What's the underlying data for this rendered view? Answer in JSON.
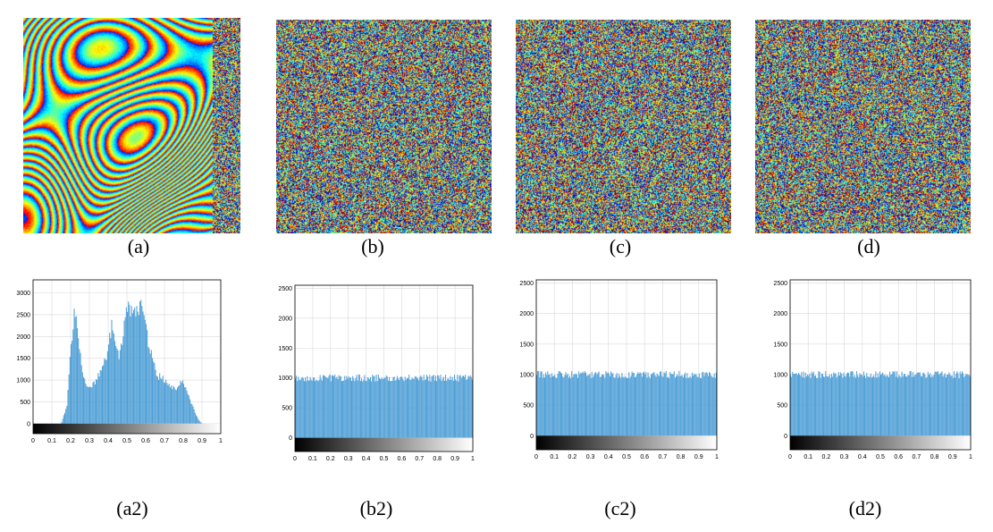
{
  "images": [
    {
      "id": "a",
      "caption": "(a)",
      "pattern": "fringes"
    },
    {
      "id": "b",
      "caption": "(b)",
      "pattern": "noise"
    },
    {
      "id": "c",
      "caption": "(c)",
      "pattern": "noise"
    },
    {
      "id": "d",
      "caption": "(d)",
      "pattern": "noise"
    }
  ],
  "histogram_captions": [
    "(a2)",
    "(b2)",
    "(c2)",
    "(d2)"
  ],
  "colors": {
    "bar": "#4f9fd6",
    "grid": "#d9d9d9",
    "axis": "#000000"
  },
  "chart_data": [
    {
      "type": "bar",
      "title": "",
      "xlabel": "",
      "ylabel": "",
      "xlim": [
        0,
        1
      ],
      "ylim": [
        -230,
        3300
      ],
      "xticks": [
        "0",
        "0.1",
        "0.2",
        "0.3",
        "0.4",
        "0.5",
        "0.6",
        "0.7",
        "0.8",
        "0.9",
        "1"
      ],
      "yticks": [
        "0",
        "500",
        "1000",
        "1500",
        "2000",
        "2500",
        "3000"
      ],
      "grid": true,
      "colorbar": "grayscale 0 to 1",
      "x": [
        0.15,
        0.18,
        0.2,
        0.22,
        0.24,
        0.26,
        0.28,
        0.3,
        0.33,
        0.36,
        0.39,
        0.42,
        0.44,
        0.46,
        0.48,
        0.5,
        0.52,
        0.54,
        0.56,
        0.58,
        0.6,
        0.62,
        0.64,
        0.66,
        0.68,
        0.7,
        0.72,
        0.74,
        0.76,
        0.78,
        0.8,
        0.82,
        0.84,
        0.86,
        0.88,
        0.9
      ],
      "values": [
        0,
        400,
        1600,
        2550,
        2150,
        1250,
        950,
        850,
        950,
        1200,
        1500,
        2250,
        1700,
        1500,
        2000,
        2750,
        2500,
        2700,
        2450,
        2850,
        2300,
        1700,
        1500,
        1050,
        1100,
        1000,
        900,
        850,
        800,
        900,
        950,
        750,
        500,
        300,
        100,
        0
      ]
    },
    {
      "type": "bar",
      "title": "",
      "xlabel": "",
      "ylabel": "",
      "xlim": [
        0,
        1
      ],
      "ylim": [
        -230,
        2550
      ],
      "xticks": [
        "0",
        "0.1",
        "0.2",
        "0.3",
        "0.4",
        "0.5",
        "0.6",
        "0.7",
        "0.8",
        "0.9",
        "1"
      ],
      "yticks": [
        "0",
        "500",
        "1000",
        "1500",
        "2000",
        "2500"
      ],
      "grid": true,
      "colorbar": "grayscale 0 to 1",
      "distribution": "uniform",
      "x": [
        0,
        1
      ],
      "values": [
        1000,
        1000
      ]
    },
    {
      "type": "bar",
      "title": "",
      "xlabel": "",
      "ylabel": "",
      "xlim": [
        0,
        1
      ],
      "ylim": [
        -230,
        2550
      ],
      "xticks": [
        "0",
        "0.1",
        "0.2",
        "0.3",
        "0.4",
        "0.5",
        "0.6",
        "0.7",
        "0.8",
        "0.9",
        "1"
      ],
      "yticks": [
        "0",
        "500",
        "1000",
        "1500",
        "2000",
        "2500"
      ],
      "grid": true,
      "colorbar": "grayscale 0 to 1",
      "distribution": "uniform",
      "x": [
        0,
        1
      ],
      "values": [
        1000,
        1000
      ]
    },
    {
      "type": "bar",
      "title": "",
      "xlabel": "",
      "ylabel": "",
      "xlim": [
        0,
        1
      ],
      "ylim": [
        -230,
        2550
      ],
      "xticks": [
        "0",
        "0.1",
        "0.2",
        "0.3",
        "0.4",
        "0.5",
        "0.6",
        "0.7",
        "0.8",
        "0.9",
        "1"
      ],
      "yticks": [
        "0",
        "500",
        "1000",
        "1500",
        "2000",
        "2500"
      ],
      "grid": true,
      "colorbar": "grayscale 0 to 1",
      "distribution": "uniform",
      "x": [
        0,
        1
      ],
      "values": [
        1000,
        1000
      ]
    }
  ]
}
